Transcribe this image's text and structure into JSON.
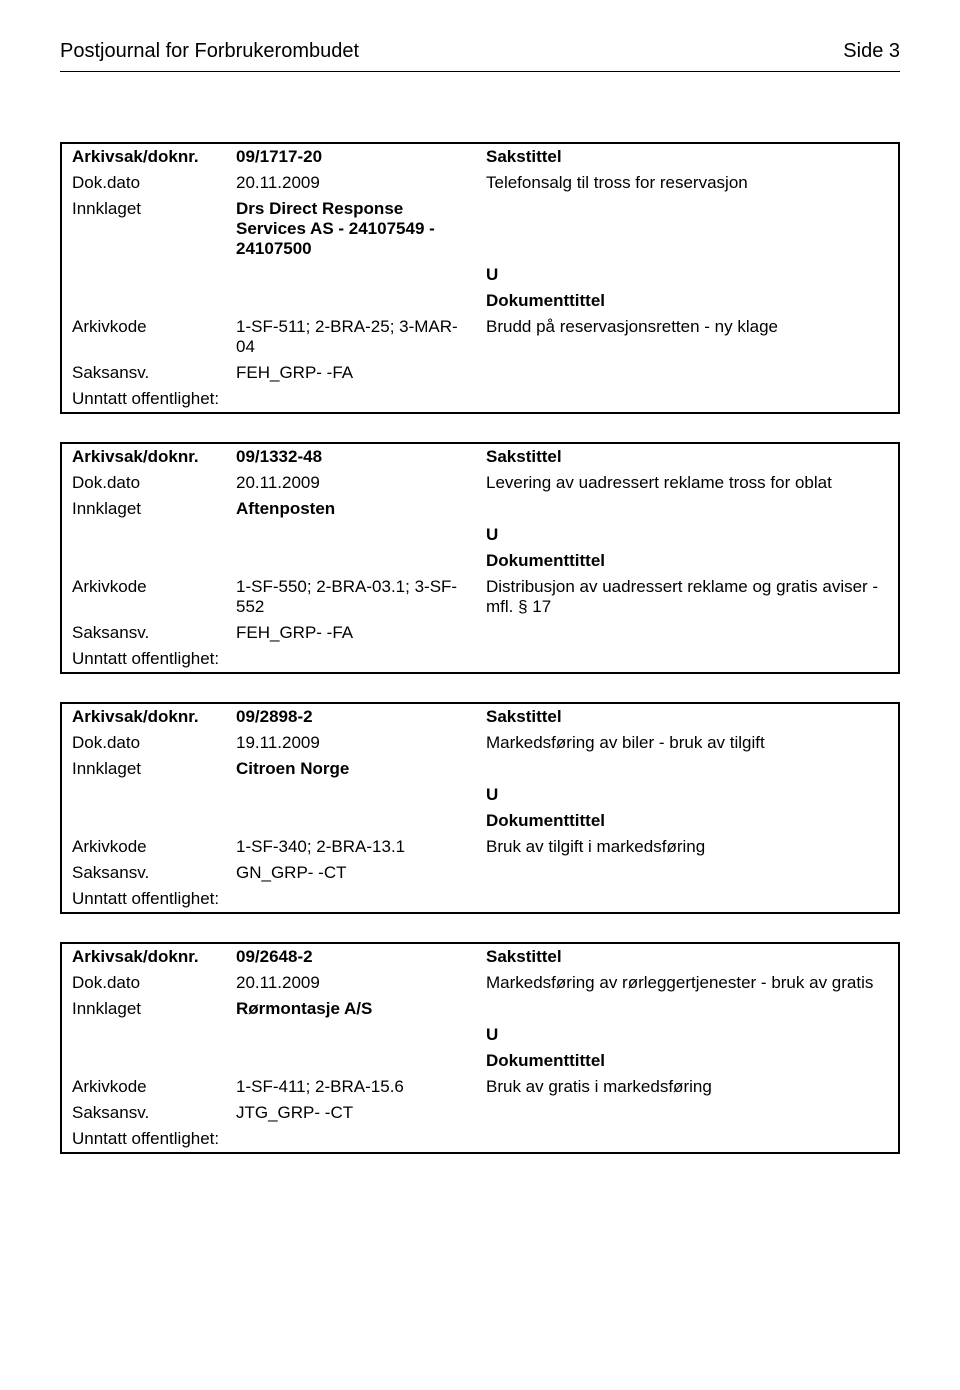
{
  "header": {
    "title": "Postjournal for Forbrukerombudet",
    "page_label": "Side 3"
  },
  "labels": {
    "arkivsak": "Arkivsak/doknr.",
    "dokdato": "Dok.dato",
    "innklaget": "Innklaget",
    "arkivkode": "Arkivkode",
    "saksansv": "Saksansv.",
    "unntatt": "Unntatt offentlighet:",
    "sakstittel": "Sakstittel",
    "dokumenttittel": "Dokumenttittel"
  },
  "records": [
    {
      "arkivsak": "09/1717-20",
      "dokdato": "20.11.2009",
      "innklaget": "Drs Direct Response Services AS - 24107549 - 24107500",
      "arkivkode": "1-SF-511; 2-BRA-25; 3-MAR-04",
      "saksansv": "FEH_GRP- -FA",
      "unntatt": "",
      "sakstittel": "Telefonsalg til tross for reservasjon",
      "direction": "U",
      "dokumenttittel": "Brudd på reservasjonsretten - ny klage"
    },
    {
      "arkivsak": "09/1332-48",
      "dokdato": "20.11.2009",
      "innklaget": "Aftenposten",
      "arkivkode": "1-SF-550; 2-BRA-03.1; 3-SF-552",
      "saksansv": "FEH_GRP- -FA",
      "unntatt": "",
      "sakstittel": "Levering av uadressert reklame tross for oblat",
      "direction": "U",
      "dokumenttittel": "Distribusjon av uadressert reklame og gratis aviser - mfl. § 17"
    },
    {
      "arkivsak": "09/2898-2",
      "dokdato": "19.11.2009",
      "innklaget": "Citroen Norge",
      "arkivkode": "1-SF-340; 2-BRA-13.1",
      "saksansv": "GN_GRP- -CT",
      "unntatt": "",
      "sakstittel": "Markedsføring av biler - bruk av tilgift",
      "direction": "U",
      "dokumenttittel": "Bruk av tilgift i markedsføring"
    },
    {
      "arkivsak": "09/2648-2",
      "dokdato": "20.11.2009",
      "innklaget": "Rørmontasje A/S",
      "arkivkode": "1-SF-411; 2-BRA-15.6",
      "saksansv": "JTG_GRP- -CT",
      "unntatt": "",
      "sakstittel": "Markedsføring av rørleggertjenester - bruk av gratis",
      "direction": "U",
      "dokumenttittel": "Bruk av gratis i markedsføring"
    }
  ]
}
